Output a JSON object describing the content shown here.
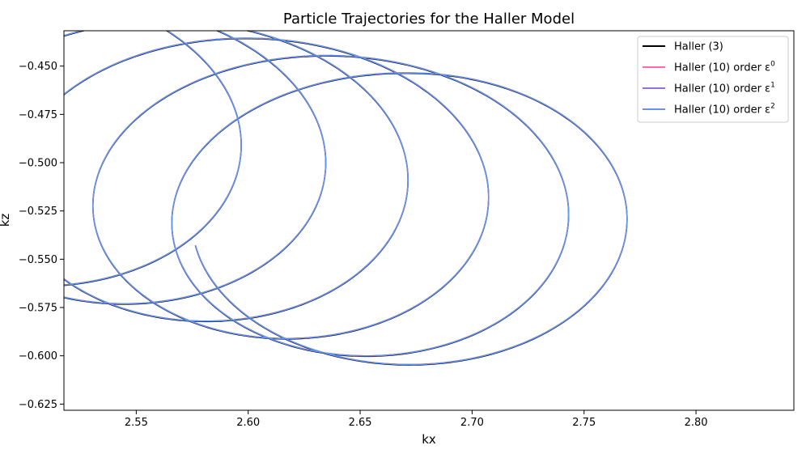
{
  "chart_data": {
    "type": "line",
    "title": "Particle Trajectories for the Haller Model",
    "xlabel": "kx",
    "ylabel": "kz",
    "xlim": [
      2.5177,
      2.8437
    ],
    "ylim": [
      -0.6282,
      -0.4317
    ],
    "x_ticks": [
      2.55,
      2.6,
      2.65,
      2.7,
      2.75,
      2.8
    ],
    "x_tick_labels": [
      "2.55",
      "2.60",
      "2.65",
      "2.70",
      "2.75",
      "2.80"
    ],
    "y_ticks": [
      -0.45,
      -0.475,
      -0.5,
      -0.525,
      -0.55,
      -0.575,
      -0.6,
      -0.625
    ],
    "y_tick_labels": [
      "−0.450",
      "−0.475",
      "−0.500",
      "−0.525",
      "−0.550",
      "−0.575",
      "−0.600",
      "−0.625"
    ],
    "grid": false,
    "legend_position": "top-right",
    "trajectory": {
      "description_loops": 6,
      "loop_centers": [
        [
          2.49,
          -0.4835
        ],
        [
          2.528,
          -0.493
        ],
        [
          2.565,
          -0.502
        ],
        [
          2.601,
          -0.511
        ],
        [
          2.637,
          -0.52
        ],
        [
          2.672,
          -0.529
        ]
      ],
      "radius_x": 0.0972,
      "radius_z": 0.0755,
      "end_point": [
        2.672,
        -0.598
      ]
    },
    "series": [
      {
        "name": "Haller (3)",
        "sup": "",
        "color": "#000000"
      },
      {
        "name": "Haller (10) order ε",
        "sup": "0",
        "color": "#ff69b4"
      },
      {
        "name": "Haller (10) order ε",
        "sup": "1",
        "color": "#9370db"
      },
      {
        "name": "Haller (10) order ε",
        "sup": "2",
        "color": "#6495ed"
      }
    ]
  }
}
